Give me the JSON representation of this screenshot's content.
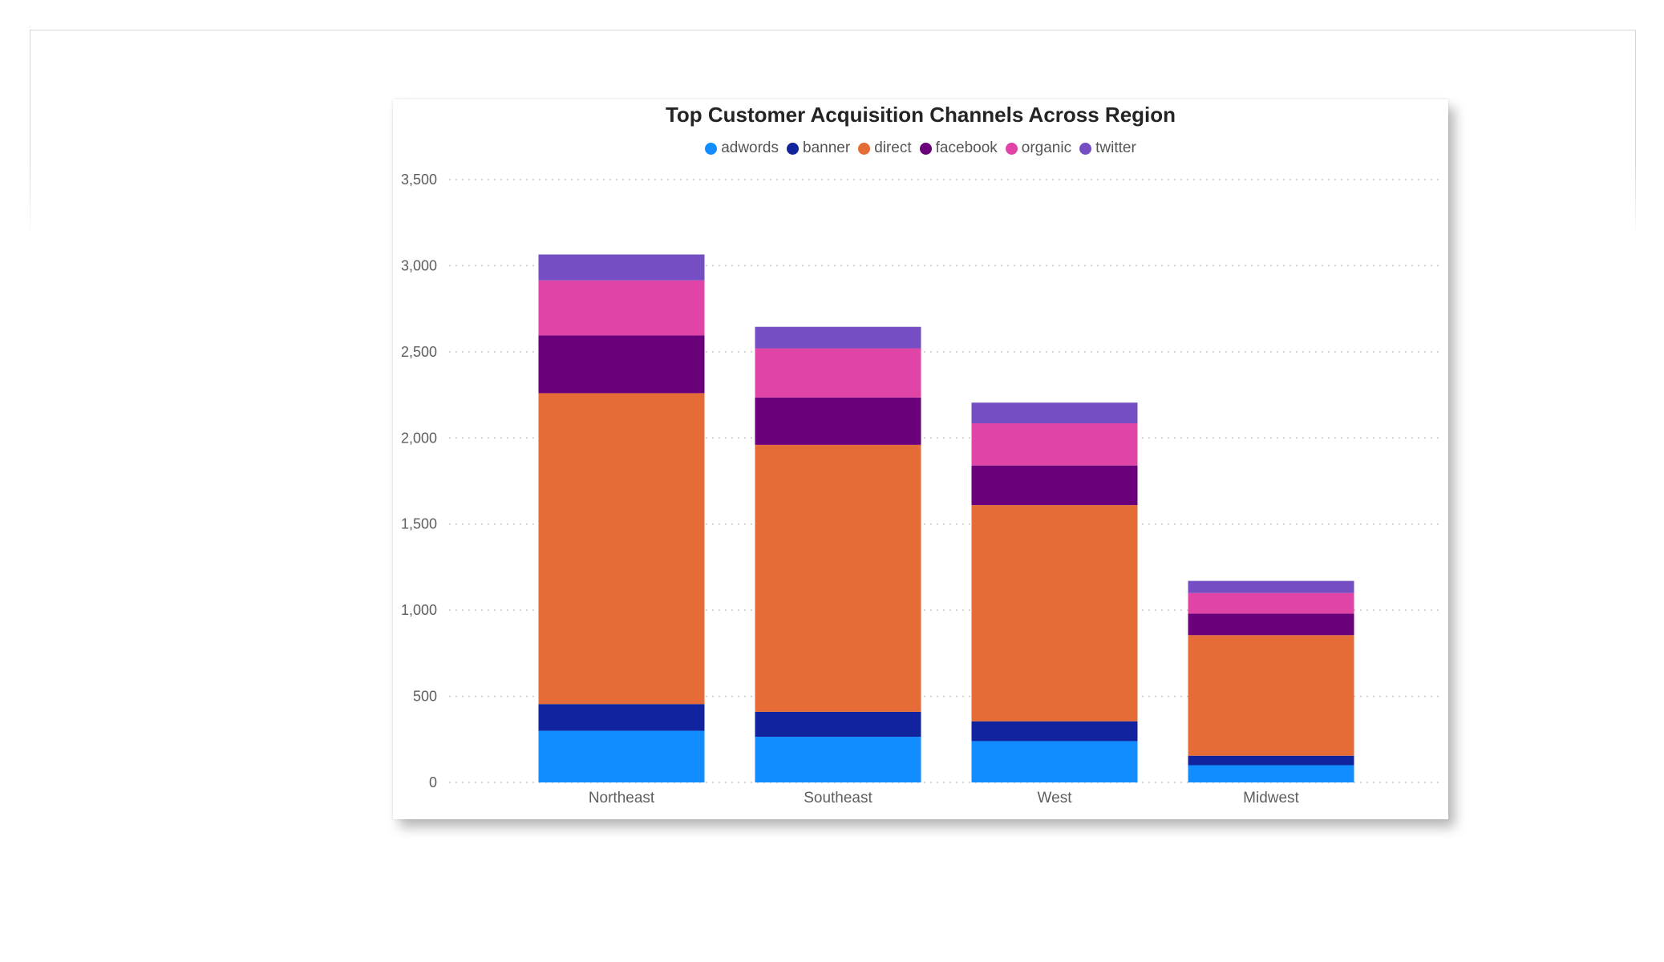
{
  "chart_data": {
    "type": "bar",
    "stacked": true,
    "title": "Top Customer Acquisition Channels Across Region",
    "xlabel": "",
    "ylabel": "",
    "ylim": [
      0,
      3500
    ],
    "yticks": [
      0,
      500,
      1000,
      1500,
      2000,
      2500,
      3000,
      3500
    ],
    "ytick_labels": [
      "0",
      "500",
      "1,000",
      "1,500",
      "2,000",
      "2,500",
      "3,000",
      "3,500"
    ],
    "grid": true,
    "legend_position": "top-center",
    "categories": [
      "Northeast",
      "Southeast",
      "West",
      "Midwest"
    ],
    "series": [
      {
        "name": "adwords",
        "color": "#118DFF",
        "values": [
          300,
          265,
          240,
          100
        ]
      },
      {
        "name": "banner",
        "color": "#12239E",
        "values": [
          155,
          145,
          115,
          55
        ]
      },
      {
        "name": "direct",
        "color": "#E66C37",
        "values": [
          1805,
          1550,
          1255,
          700
        ]
      },
      {
        "name": "facebook",
        "color": "#6B007B",
        "values": [
          335,
          275,
          230,
          125
        ]
      },
      {
        "name": "organic",
        "color": "#E044A7",
        "values": [
          320,
          285,
          245,
          120
        ]
      },
      {
        "name": "twitter",
        "color": "#744EC2",
        "values": [
          150,
          125,
          120,
          70
        ]
      }
    ]
  }
}
